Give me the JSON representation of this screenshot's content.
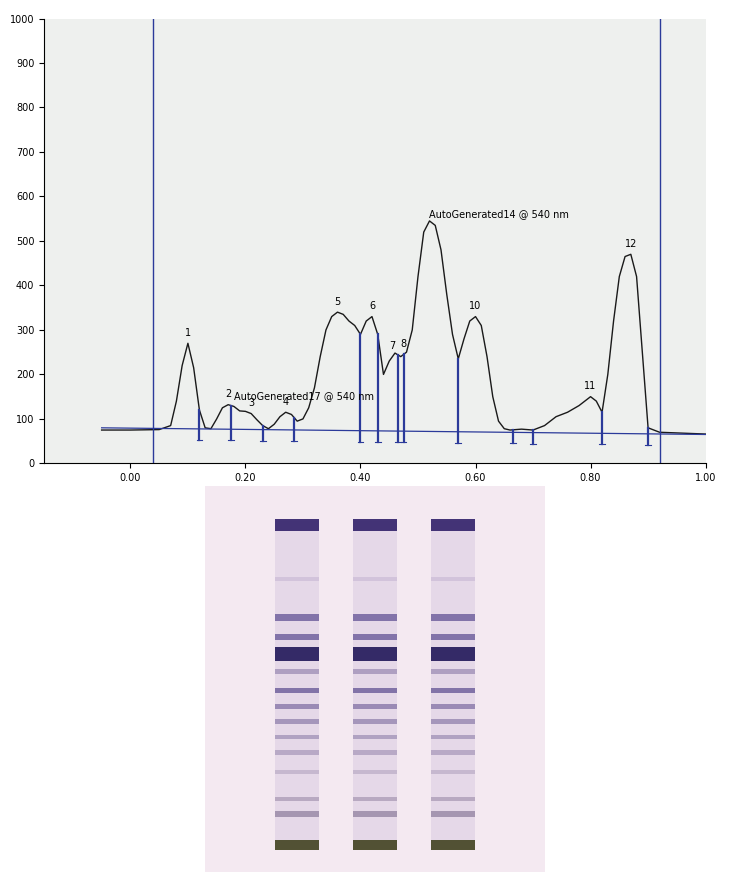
{
  "chart_data": {
    "type": "line",
    "x": [
      -0.05,
      0.0,
      0.05,
      0.07,
      0.08,
      0.09,
      0.1,
      0.11,
      0.12,
      0.13,
      0.14,
      0.15,
      0.16,
      0.17,
      0.18,
      0.19,
      0.2,
      0.21,
      0.22,
      0.23,
      0.24,
      0.25,
      0.26,
      0.27,
      0.28,
      0.29,
      0.3,
      0.31,
      0.32,
      0.33,
      0.34,
      0.35,
      0.36,
      0.37,
      0.38,
      0.39,
      0.4,
      0.41,
      0.42,
      0.43,
      0.44,
      0.45,
      0.46,
      0.47,
      0.48,
      0.49,
      0.5,
      0.51,
      0.52,
      0.53,
      0.54,
      0.55,
      0.56,
      0.57,
      0.58,
      0.59,
      0.6,
      0.61,
      0.62,
      0.63,
      0.64,
      0.65,
      0.66,
      0.68,
      0.7,
      0.72,
      0.74,
      0.76,
      0.78,
      0.8,
      0.81,
      0.82,
      0.83,
      0.84,
      0.85,
      0.86,
      0.87,
      0.88,
      0.89,
      0.9,
      0.92,
      0.96,
      1.0
    ],
    "values": [
      75,
      75,
      76,
      85,
      140,
      220,
      270,
      215,
      120,
      80,
      78,
      100,
      125,
      132,
      128,
      118,
      117,
      112,
      98,
      85,
      78,
      88,
      105,
      115,
      110,
      95,
      100,
      125,
      170,
      240,
      300,
      330,
      340,
      335,
      320,
      310,
      290,
      320,
      330,
      290,
      200,
      230,
      248,
      240,
      250,
      300,
      420,
      520,
      545,
      535,
      480,
      380,
      290,
      235,
      280,
      320,
      330,
      310,
      240,
      150,
      95,
      78,
      75,
      77,
      75,
      85,
      105,
      115,
      130,
      150,
      140,
      115,
      200,
      320,
      420,
      465,
      470,
      420,
      250,
      80,
      70,
      68,
      66
    ],
    "color": "#1a1a1a",
    "baseline": {
      "x": [
        -0.05,
        1.0
      ],
      "values": [
        80,
        65
      ],
      "color": "#2b3a9a"
    },
    "window": [
      0.04,
      0.92
    ],
    "peak_boundaries": [
      0.12,
      0.175,
      0.23,
      0.285,
      0.4,
      0.43,
      0.465,
      0.475,
      0.57,
      0.665,
      0.7,
      0.82,
      0.9
    ],
    "peaks": [
      {
        "label": "1",
        "x": 0.1,
        "y": 270
      },
      {
        "label": "2",
        "x": 0.17,
        "y": 132
      },
      {
        "label": "3",
        "x": 0.21,
        "y": 112
      },
      {
        "label": "4",
        "x": 0.27,
        "y": 115
      },
      {
        "label": "5",
        "x": 0.36,
        "y": 340
      },
      {
        "label": "6",
        "x": 0.42,
        "y": 330
      },
      {
        "label": "7",
        "x": 0.455,
        "y": 240
      },
      {
        "label": "8",
        "x": 0.475,
        "y": 245
      },
      {
        "label": "10",
        "x": 0.6,
        "y": 330
      },
      {
        "label": "11",
        "x": 0.8,
        "y": 150
      },
      {
        "label": "12",
        "x": 0.87,
        "y": 470
      }
    ],
    "annotations": [
      {
        "text": "AutoGenerated17 @ 540 nm",
        "x": 0.18,
        "y": 140
      },
      {
        "text": "AutoGenerated14 @ 540 nm",
        "x": 0.52,
        "y": 550
      }
    ],
    "xlim": [
      -0.15,
      1.0
    ],
    "xticks": [
      {
        "value": 0.0,
        "label": "0.00"
      },
      {
        "value": 0.2,
        "label": "0.20"
      },
      {
        "value": 0.4,
        "label": "0.40"
      },
      {
        "value": 0.6,
        "label": "0.60"
      },
      {
        "value": 0.8,
        "label": "0.80"
      },
      {
        "value": 1.0,
        "label": "1.00"
      }
    ],
    "ylim": [
      0,
      1000
    ],
    "yticks": [
      0,
      100,
      200,
      300,
      400,
      500,
      600,
      700,
      800,
      900,
      1000
    ],
    "grid": false
  }
}
